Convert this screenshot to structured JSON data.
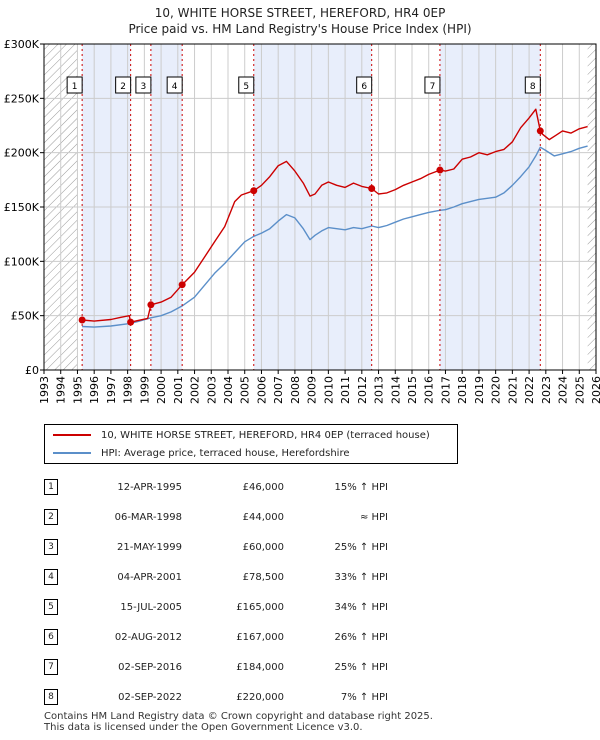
{
  "title_line1": "10, WHITE HORSE STREET, HEREFORD, HR4 0EP",
  "title_line2": "Price paid vs. HM Land Registry's House Price Index (HPI)",
  "legend": {
    "property_label": "10, WHITE HORSE STREET, HEREFORD, HR4 0EP (terraced house)",
    "hpi_label": "HPI: Average price, terraced house, Herefordshire"
  },
  "colors": {
    "property": "#cc0000",
    "hpi": "#5b8fc9",
    "band": "#e8eefb",
    "grid": "#cccccc"
  },
  "sales": [
    {
      "num": "1",
      "date": "12-APR-1995",
      "price": "£46,000",
      "hpi": "15% ↑ HPI"
    },
    {
      "num": "2",
      "date": "06-MAR-1998",
      "price": "£44,000",
      "hpi": "≈ HPI"
    },
    {
      "num": "3",
      "date": "21-MAY-1999",
      "price": "£60,000",
      "hpi": "25% ↑ HPI"
    },
    {
      "num": "4",
      "date": "04-APR-2001",
      "price": "£78,500",
      "hpi": "33% ↑ HPI"
    },
    {
      "num": "5",
      "date": "15-JUL-2005",
      "price": "£165,000",
      "hpi": "34% ↑ HPI"
    },
    {
      "num": "6",
      "date": "02-AUG-2012",
      "price": "£167,000",
      "hpi": "26% ↑ HPI"
    },
    {
      "num": "7",
      "date": "02-SEP-2016",
      "price": "£184,000",
      "hpi": "25% ↑ HPI"
    },
    {
      "num": "8",
      "date": "02-SEP-2022",
      "price": "£220,000",
      "hpi": "7% ↑ HPI"
    }
  ],
  "footer": {
    "line1": "Contains HM Land Registry data © Crown copyright and database right 2025.",
    "line2": "This data is licensed under the Open Government Licence v3.0."
  },
  "chart_data": {
    "type": "line",
    "title": "Price paid vs. HM Land Registry's House Price Index (HPI)",
    "xlim": [
      1993,
      2026
    ],
    "ylim": [
      0,
      300000
    ],
    "x_ticks": [
      "1993",
      "1994",
      "1995",
      "1996",
      "1997",
      "1998",
      "1999",
      "2000",
      "2001",
      "2002",
      "2003",
      "2004",
      "2005",
      "2006",
      "2007",
      "2008",
      "2009",
      "2010",
      "2011",
      "2012",
      "2013",
      "2014",
      "2015",
      "2016",
      "2017",
      "2018",
      "2019",
      "2020",
      "2021",
      "2022",
      "2023",
      "2024",
      "2025",
      "2026"
    ],
    "y_ticks": [
      {
        "value": 0,
        "label": "£0"
      },
      {
        "value": 50000,
        "label": "£50K"
      },
      {
        "value": 100000,
        "label": "£100K"
      },
      {
        "value": 150000,
        "label": "£150K"
      },
      {
        "value": 200000,
        "label": "£200K"
      },
      {
        "value": 250000,
        "label": "£250K"
      },
      {
        "value": 300000,
        "label": "£300K"
      }
    ],
    "hatch_before": 1995.0,
    "hatch_after": 2025.5,
    "sale_points": [
      {
        "label": "1",
        "x": 1995.28,
        "y": 46000
      },
      {
        "label": "2",
        "x": 1998.18,
        "y": 44000
      },
      {
        "label": "3",
        "x": 1999.39,
        "y": 60000
      },
      {
        "label": "4",
        "x": 2001.26,
        "y": 78500
      },
      {
        "label": "5",
        "x": 2005.54,
        "y": 165000
      },
      {
        "label": "6",
        "x": 2012.59,
        "y": 167000
      },
      {
        "label": "7",
        "x": 2016.67,
        "y": 184000
      },
      {
        "label": "8",
        "x": 2022.67,
        "y": 220000
      }
    ],
    "series": [
      {
        "name": "10, WHITE HORSE STREET, HEREFORD, HR4 0EP (terraced house)",
        "x": [
          1995.28,
          1996,
          1997,
          1997.6,
          1998.1,
          1998.18,
          1998.6,
          1999.2,
          1999.39,
          2000,
          2000.6,
          2001.26,
          2002,
          2002.6,
          2003.2,
          2003.8,
          2004.4,
          2004.8,
          2005.54,
          2006,
          2006.5,
          2007,
          2007.5,
          2008,
          2008.5,
          2008.9,
          2009.2,
          2009.6,
          2010,
          2010.5,
          2011,
          2011.5,
          2012,
          2012.59,
          2013,
          2013.5,
          2014,
          2014.5,
          2015,
          2015.5,
          2016,
          2016.67,
          2017,
          2017.5,
          2018,
          2018.5,
          2019,
          2019.5,
          2020,
          2020.5,
          2021,
          2021.5,
          2022,
          2022.4,
          2022.67,
          2022.8,
          2023.2,
          2023.6,
          2024,
          2024.5,
          2025,
          2025.5
        ],
        "y": [
          46000,
          45000,
          46500,
          48500,
          50000,
          44000,
          45500,
          47500,
          60000,
          62500,
          67000,
          78500,
          90000,
          104000,
          118000,
          132000,
          155000,
          161000,
          165000,
          170000,
          178000,
          188000,
          192000,
          183000,
          172000,
          160000,
          162000,
          170000,
          173000,
          170000,
          168000,
          172000,
          169000,
          167000,
          162000,
          163000,
          166000,
          170000,
          173000,
          176000,
          180000,
          184000,
          183000,
          185000,
          194000,
          196000,
          200000,
          198000,
          201000,
          203000,
          210000,
          223000,
          232000,
          240000,
          220000,
          217000,
          212000,
          216000,
          220000,
          218000,
          222000,
          224000
        ]
      },
      {
        "name": "HPI: Average price, terraced house, Herefordshire",
        "x": [
          1995.28,
          1996,
          1997,
          1998,
          1998.6,
          1999.39,
          2000,
          2000.6,
          2001.26,
          2002,
          2002.6,
          2003.2,
          2003.8,
          2004.4,
          2005,
          2005.54,
          2006,
          2006.5,
          2007,
          2007.5,
          2008,
          2008.5,
          2008.9,
          2009.2,
          2009.6,
          2010,
          2010.5,
          2011,
          2011.5,
          2012,
          2012.59,
          2013,
          2013.5,
          2014,
          2014.5,
          2015,
          2015.5,
          2016,
          2016.67,
          2017,
          2017.5,
          2018,
          2018.5,
          2019,
          2019.5,
          2020,
          2020.5,
          2021,
          2021.5,
          2022,
          2022.4,
          2022.67,
          2023,
          2023.5,
          2024,
          2024.5,
          2025,
          2025.5
        ],
        "y": [
          40000,
          39500,
          40500,
          42500,
          44500,
          48000,
          50000,
          53500,
          59000,
          67000,
          78000,
          89000,
          98000,
          108000,
          118000,
          123000,
          126000,
          130000,
          137000,
          143000,
          140000,
          130000,
          120000,
          124000,
          128000,
          131000,
          130000,
          129000,
          131000,
          130000,
          132500,
          131000,
          133000,
          136000,
          139000,
          141000,
          143000,
          145000,
          147000,
          147500,
          150000,
          153000,
          155000,
          157000,
          158000,
          159000,
          163000,
          170000,
          178000,
          187000,
          197000,
          205000,
          202000,
          197000,
          199000,
          201000,
          204000,
          206000
        ]
      }
    ]
  }
}
